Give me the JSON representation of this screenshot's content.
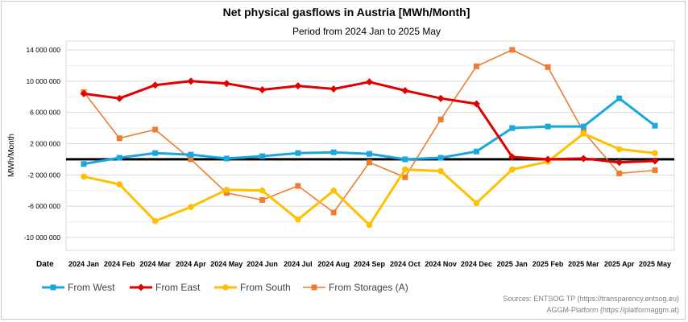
{
  "chart_data": {
    "type": "line",
    "title": "Net physical gasflows in Austria [MWh/Month]",
    "subtitle": "Period from  2024 Jan  to  2025 May",
    "ylabel": "MWh/Month",
    "xlabel": "Date",
    "ylim": [
      -12000000,
      16000000
    ],
    "yticks": [
      14000000,
      10000000,
      6000000,
      2000000,
      -2000000,
      -6000000,
      -10000000
    ],
    "ytick_labels": [
      "14 000 000",
      "10 000 000",
      "6 000 000",
      "2 000 000",
      "-2 000 000",
      "-6 000 000",
      "-10 000 000"
    ],
    "categories": [
      "2024 Jan",
      "2024 Feb",
      "2024 Mar",
      "2024 Apr",
      "2024 May",
      "2024 Jun",
      "2024 Jul",
      "2024 Aug",
      "2024 Sep",
      "2024 Oct",
      "2024 Nov",
      "2024 Dec",
      "2025 Jan",
      "2025 Feb",
      "2025 Mar",
      "2025 Apr",
      "2025 May"
    ],
    "series": [
      {
        "name": "From West",
        "color": "#1aa7e0",
        "marker": "square",
        "values": [
          -600000,
          200000,
          800000,
          600000,
          100000,
          400000,
          800000,
          900000,
          700000,
          0,
          200000,
          1000000,
          4000000,
          4200000,
          4200000,
          7800000,
          4300000
        ]
      },
      {
        "name": "From East",
        "color": "#e00000",
        "marker": "diamond",
        "values": [
          8400000,
          7800000,
          9500000,
          10000000,
          9700000,
          8900000,
          9400000,
          9000000,
          9900000,
          8800000,
          7800000,
          7100000,
          300000,
          0,
          100000,
          -400000,
          -200000
        ]
      },
      {
        "name": "From South",
        "color": "#ffc000",
        "marker": "circle",
        "values": [
          -2200000,
          -3200000,
          -7900000,
          -6100000,
          -3900000,
          -4000000,
          -7700000,
          -4000000,
          -8400000,
          -1300000,
          -1500000,
          -5600000,
          -1300000,
          -300000,
          3300000,
          1300000,
          800000
        ]
      },
      {
        "name": "From Storages (A)",
        "color": "#ed7d31",
        "marker": "square",
        "values": [
          8600000,
          2700000,
          3800000,
          0,
          -4300000,
          -5200000,
          -3400000,
          -6800000,
          -400000,
          -2300000,
          5100000,
          11900000,
          14000000,
          11800000,
          3500000,
          -1800000,
          -1400000
        ]
      }
    ],
    "zero_line": true,
    "grid": true,
    "legend_position": "bottom-left",
    "sources": [
      "Sources: ENTSOG TP (https://transparency.entsog.eu)",
      "AGGM-Platform (https://platformaggm.at)"
    ]
  }
}
